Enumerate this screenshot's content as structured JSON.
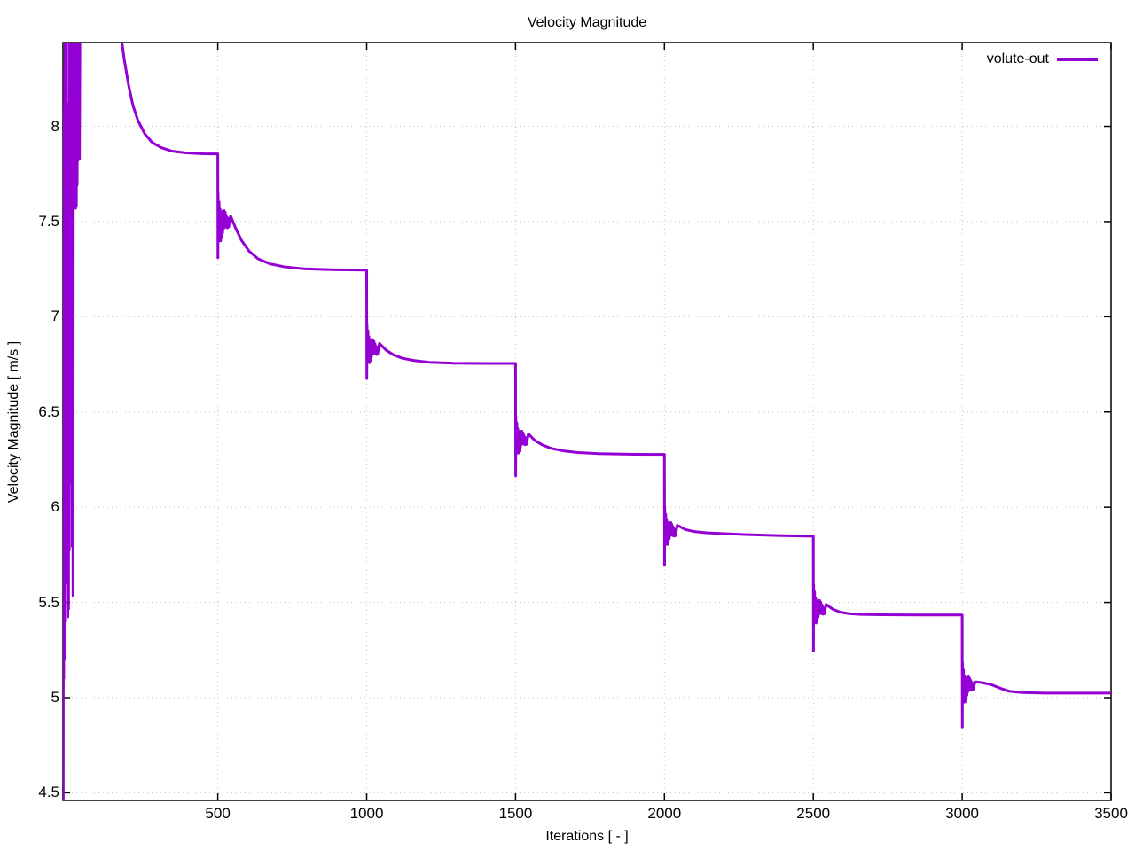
{
  "chart_data": {
    "type": "line",
    "title": "Velocity Magnitude",
    "xlabel": "Iterations [ - ]",
    "ylabel": "Velocity Magnitude [ m/s ]",
    "xlim": [
      -20,
      3500
    ],
    "ylim": [
      4.46,
      8.44
    ],
    "xticks": [
      500,
      1000,
      1500,
      2000,
      2500,
      3000,
      3500
    ],
    "yticks": [
      4.5,
      5,
      5.5,
      6,
      6.5,
      7,
      7.5,
      8
    ],
    "grid": true,
    "grid_color": "#c3c3c3",
    "border_color": "#000000",
    "legend_position": "top-right-inside",
    "series": [
      {
        "name": "volute-out",
        "color": "#9400d3",
        "line_width": 3,
        "summary": {
          "description": "Stepped convergence history: flat plateaus separated by sharp drops with damped oscillation bursts every 500 iterations; large chaotic transient near iteration 0 spanning the full axis range",
          "drop_iterations": [
            500,
            1000,
            1500,
            2000,
            2500,
            3000
          ],
          "plateau_values": [
            7.86,
            7.25,
            6.76,
            6.28,
            5.85,
            5.43,
            5.02
          ],
          "drop_minima": [
            7.31,
            6.67,
            6.16,
            5.69,
            5.24,
            4.84
          ]
        },
        "segments": [
          {
            "pts": [
              [
                -19,
                4.46
              ],
              [
                -18,
                7.2
              ],
              [
                -17.5,
                5.1
              ],
              [
                -17,
                7.9
              ],
              [
                -16.5,
                5.3
              ],
              [
                -16,
                8.1
              ],
              [
                -15.5,
                5.2
              ],
              [
                -15,
                8.3
              ],
              [
                -14,
                5.4
              ],
              [
                -13,
                8.44
              ],
              [
                -12,
                5.6
              ],
              [
                -11,
                8.44
              ]
            ]
          },
          {
            "osc": {
              "x0": -10,
              "x1": 15,
              "dx": 1.25,
              "c0": 7.1,
              "c1": 7.1,
              "a0": 1.74,
              "a1": 1.6
            }
          },
          {
            "osc": {
              "x0": 16,
              "x1": 36,
              "dx": 1.3,
              "c0": 8.1,
              "c1": 8.2,
              "a0": 0.55,
              "a1": 0.62
            }
          },
          {
            "pts": [
              [
                38,
                8.9
              ],
              [
                70,
                10.4
              ],
              [
                130,
                10.6
              ],
              [
                162,
                9.2
              ],
              [
                178,
                8.44
              ],
              [
                186,
                8.35
              ],
              [
                200,
                8.22
              ],
              [
                215,
                8.11
              ],
              [
                232,
                8.03
              ],
              [
                255,
                7.96
              ],
              [
                280,
                7.915
              ],
              [
                310,
                7.888
              ],
              [
                345,
                7.87
              ],
              [
                390,
                7.861
              ],
              [
                450,
                7.856
              ],
              [
                500,
                7.855
              ]
            ]
          },
          {
            "pts": [
              [
                500.5,
                7.31
              ]
            ]
          },
          {
            "osc": {
              "x0": 501,
              "x1": 537,
              "dx": 1.7,
              "c0": 7.5,
              "c1": 7.5,
              "a0": 0.155,
              "a1": 0.028
            }
          },
          {
            "pts": [
              [
                543,
                7.53
              ],
              [
                560,
                7.465
              ],
              [
                580,
                7.4
              ],
              [
                605,
                7.345
              ],
              [
                635,
                7.305
              ],
              [
                675,
                7.278
              ],
              [
                725,
                7.262
              ],
              [
                790,
                7.252
              ],
              [
                880,
                7.247
              ],
              [
                1000,
                7.245
              ]
            ]
          },
          {
            "pts": [
              [
                1000.5,
                6.675
              ]
            ]
          },
          {
            "osc": {
              "x0": 1001,
              "x1": 1037,
              "dx": 1.7,
              "c0": 6.845,
              "c1": 6.825,
              "a0": 0.125,
              "a1": 0.022
            }
          },
          {
            "pts": [
              [
                1043,
                6.86
              ],
              [
                1065,
                6.825
              ],
              [
                1090,
                6.8
              ],
              [
                1120,
                6.782
              ],
              [
                1160,
                6.77
              ],
              [
                1210,
                6.761
              ],
              [
                1290,
                6.756
              ],
              [
                1400,
                6.755
              ],
              [
                1500,
                6.755
              ]
            ]
          },
          {
            "pts": [
              [
                1500.5,
                6.165
              ]
            ]
          },
          {
            "osc": {
              "x0": 1501,
              "x1": 1537,
              "dx": 1.7,
              "c0": 6.365,
              "c1": 6.35,
              "a0": 0.12,
              "a1": 0.02
            }
          },
          {
            "pts": [
              [
                1543,
                6.385
              ],
              [
                1565,
                6.35
              ],
              [
                1590,
                6.327
              ],
              [
                1620,
                6.309
              ],
              [
                1660,
                6.296
              ],
              [
                1710,
                6.287
              ],
              [
                1780,
                6.281
              ],
              [
                1900,
                6.278
              ],
              [
                2000,
                6.277
              ]
            ]
          },
          {
            "pts": [
              [
                2000.5,
                5.695
              ]
            ]
          },
          {
            "osc": {
              "x0": 2001,
              "x1": 2037,
              "dx": 1.7,
              "c0": 5.885,
              "c1": 5.87,
              "a0": 0.12,
              "a1": 0.02
            }
          },
          {
            "pts": [
              [
                2043,
                5.905
              ],
              [
                2070,
                5.883
              ],
              [
                2100,
                5.872
              ],
              [
                2140,
                5.866
              ],
              [
                2200,
                5.861
              ],
              [
                2280,
                5.856
              ],
              [
                2380,
                5.851
              ],
              [
                2500,
                5.848
              ]
            ]
          },
          {
            "pts": [
              [
                2500.5,
                5.245
              ]
            ]
          },
          {
            "osc": {
              "x0": 2501,
              "x1": 2537,
              "dx": 1.7,
              "c0": 5.475,
              "c1": 5.46,
              "a0": 0.125,
              "a1": 0.02
            }
          },
          {
            "pts": [
              [
                2543,
                5.49
              ],
              [
                2565,
                5.465
              ],
              [
                2590,
                5.449
              ],
              [
                2620,
                5.441
              ],
              [
                2660,
                5.437
              ],
              [
                2730,
                5.435
              ],
              [
                2850,
                5.434
              ],
              [
                3000,
                5.434
              ]
            ]
          },
          {
            "pts": [
              [
                3000.5,
                4.845
              ]
            ]
          },
          {
            "osc": {
              "x0": 3001,
              "x1": 3037,
              "dx": 1.7,
              "c0": 5.06,
              "c1": 5.065,
              "a0": 0.13,
              "a1": 0.022
            }
          },
          {
            "pts": [
              [
                3043,
                5.083
              ],
              [
                3070,
                5.078
              ],
              [
                3100,
                5.067
              ],
              [
                3130,
                5.048
              ],
              [
                3160,
                5.033
              ],
              [
                3200,
                5.027
              ],
              [
                3280,
                5.024
              ],
              [
                3500,
                5.024
              ]
            ]
          }
        ]
      }
    ]
  }
}
